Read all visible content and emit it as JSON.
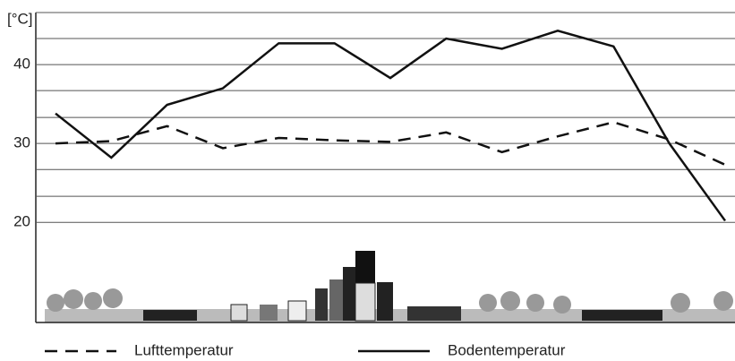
{
  "chart_data": {
    "type": "line",
    "y_label": "[°C]",
    "categories": [
      null,
      null,
      null,
      null,
      null,
      null,
      null,
      null,
      null,
      null,
      null,
      null,
      null
    ],
    "series": [
      {
        "name": "Lufttemperatur",
        "color": "#111111",
        "dash": true,
        "values": [
          30.0,
          30.3,
          32.2,
          29.4,
          30.7,
          30.4,
          30.2,
          31.4,
          28.9,
          30.9,
          32.7,
          30.5,
          27.3
        ]
      },
      {
        "name": "Bodentemperatur",
        "color": "#111111",
        "dash": false,
        "values": [
          33.8,
          28.2,
          34.9,
          37.0,
          42.7,
          42.7,
          38.3,
          43.3,
          42.0,
          44.3,
          42.3,
          30.0,
          20.2
        ]
      }
    ],
    "ylim": [
      7.3,
      46.6
    ],
    "yticks": [
      20,
      30,
      40
    ],
    "minor_gridlines": [
      23.3,
      26.7,
      33.3,
      36.7,
      43.3,
      46.6
    ],
    "grid": true
  }
}
